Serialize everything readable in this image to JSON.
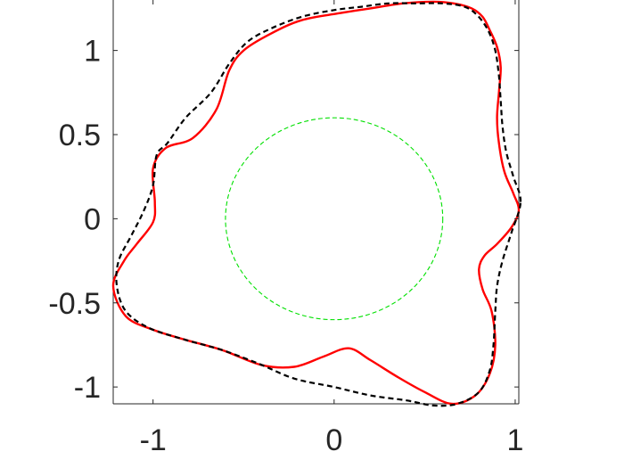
{
  "chart_data": {
    "type": "line",
    "title": "",
    "xlabel": "",
    "ylabel": "",
    "xlim": [
      -1.22,
      1.02
    ],
    "ylim": [
      -1.1,
      1.3
    ],
    "x_ticks": [
      -1,
      0,
      1
    ],
    "x_tick_labels": [
      "-1",
      "0",
      "1"
    ],
    "y_ticks": [
      -1,
      -0.5,
      0,
      0.5,
      1
    ],
    "y_tick_labels": [
      "-1",
      "-0.5",
      "0",
      "0.5",
      "1"
    ],
    "grid": false,
    "legend": "none",
    "series": [
      {
        "style": "solid",
        "color": "#ff0000",
        "x": [
          1.02,
          0.99,
          0.94,
          0.91,
          0.9,
          0.91,
          0.92,
          0.9,
          0.86,
          0.82,
          0.76,
          0.66,
          0.55,
          0.38,
          0.2,
          0.02,
          -0.18,
          -0.35,
          -0.5,
          -0.58,
          -0.65,
          -0.78,
          -0.93,
          -1.0,
          -0.99,
          -1.0,
          -1.09,
          -1.16,
          -1.22,
          -1.15,
          -1.0,
          -0.82,
          -0.62,
          -0.4,
          -0.22,
          -0.06,
          0.08,
          0.2,
          0.35,
          0.5,
          0.65,
          0.78,
          0.86,
          0.89,
          0.87,
          0.82,
          0.8,
          0.83,
          0.9,
          0.98,
          1.02
        ],
        "y": [
          0.05,
          0.15,
          0.28,
          0.45,
          0.6,
          0.75,
          0.9,
          1.02,
          1.12,
          1.2,
          1.25,
          1.28,
          1.29,
          1.28,
          1.25,
          1.22,
          1.18,
          1.1,
          1.0,
          0.88,
          0.65,
          0.48,
          0.42,
          0.3,
          0.1,
          -0.02,
          -0.15,
          -0.25,
          -0.4,
          -0.58,
          -0.66,
          -0.72,
          -0.78,
          -0.87,
          -0.88,
          -0.82,
          -0.77,
          -0.84,
          -0.94,
          -1.03,
          -1.1,
          -1.05,
          -0.92,
          -0.75,
          -0.55,
          -0.42,
          -0.3,
          -0.22,
          -0.15,
          -0.05,
          0.05
        ]
      },
      {
        "style": "dashed",
        "color": "#000000",
        "x": [
          1.03,
          0.99,
          0.95,
          0.93,
          0.92,
          0.91,
          0.89,
          0.85,
          0.79,
          0.72,
          0.6,
          0.45,
          0.3,
          0.15,
          0.0,
          -0.18,
          -0.35,
          -0.48,
          -0.58,
          -0.68,
          -0.82,
          -0.92,
          -0.98,
          -1.0,
          -1.05,
          -1.12,
          -1.19,
          -1.2,
          -1.15,
          -1.02,
          -0.82,
          -0.62,
          -0.42,
          -0.22,
          0.0,
          0.2,
          0.4,
          0.55,
          0.68,
          0.8,
          0.86,
          0.88,
          0.89,
          0.9,
          0.93,
          0.98,
          1.03
        ],
        "y": [
          0.1,
          0.25,
          0.4,
          0.55,
          0.7,
          0.85,
          1.0,
          1.12,
          1.21,
          1.26,
          1.28,
          1.28,
          1.28,
          1.26,
          1.24,
          1.2,
          1.13,
          1.05,
          0.92,
          0.75,
          0.6,
          0.45,
          0.38,
          0.2,
          0.05,
          -0.1,
          -0.25,
          -0.4,
          -0.55,
          -0.65,
          -0.72,
          -0.78,
          -0.86,
          -0.95,
          -1.0,
          -1.05,
          -1.08,
          -1.11,
          -1.1,
          -1.03,
          -0.9,
          -0.75,
          -0.55,
          -0.4,
          -0.25,
          -0.08,
          0.1
        ]
      },
      {
        "style": "dashed-thin",
        "color": "#00e000",
        "shape": "circle",
        "center": [
          0,
          0
        ],
        "radius": 0.6
      }
    ]
  }
}
